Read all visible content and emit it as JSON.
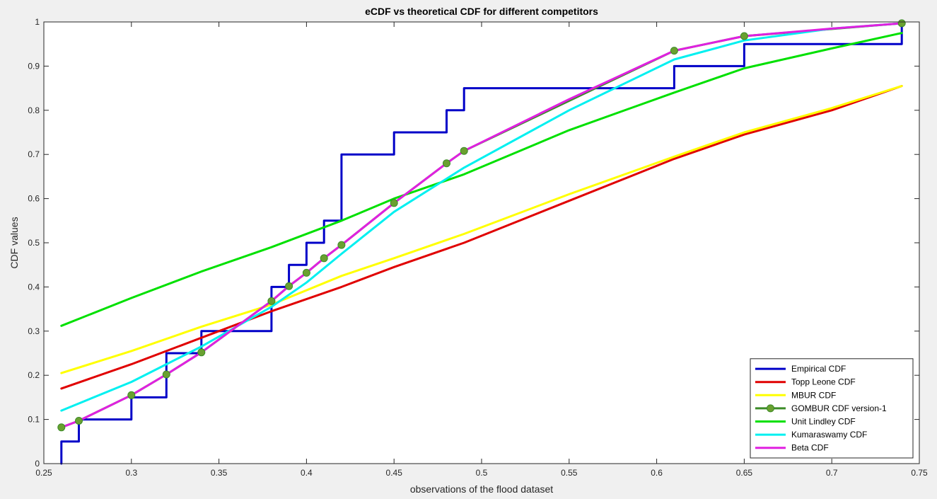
{
  "chart_data": {
    "type": "line",
    "title": "eCDF vs theoretical CDF for different competitors",
    "xlabel": "observations of the flood dataset",
    "ylabel": "CDF values",
    "xlim": [
      0.25,
      0.75
    ],
    "ylim": [
      0,
      1
    ],
    "xticks": [
      0.25,
      0.3,
      0.35,
      0.4,
      0.45,
      0.5,
      0.55,
      0.6,
      0.65,
      0.7,
      0.75
    ],
    "xtick_labels": [
      "0.25",
      "0.3",
      "0.35",
      "0.4",
      "0.45",
      "0.5",
      "0.55",
      "0.6",
      "0.65",
      "0.7",
      "0.75"
    ],
    "yticks": [
      0,
      0.1,
      0.2,
      0.3,
      0.4,
      0.5,
      0.6,
      0.7,
      0.8,
      0.9,
      1
    ],
    "ytick_labels": [
      "0",
      "0.1",
      "0.2",
      "0.3",
      "0.4",
      "0.5",
      "0.6",
      "0.7",
      "0.8",
      "0.9",
      "1"
    ],
    "grid": false,
    "legend_position": "bottom-right",
    "series": [
      {
        "name": "Empirical CDF",
        "style": "step",
        "color": "#0000c8",
        "x": [
          0.26,
          0.26,
          0.27,
          0.27,
          0.3,
          0.3,
          0.32,
          0.32,
          0.34,
          0.34,
          0.38,
          0.38,
          0.39,
          0.39,
          0.4,
          0.4,
          0.41,
          0.41,
          0.42,
          0.42,
          0.45,
          0.45,
          0.48,
          0.48,
          0.49,
          0.49,
          0.61,
          0.61,
          0.65,
          0.65,
          0.74,
          0.74
        ],
        "y": [
          0,
          0.05,
          0.05,
          0.1,
          0.1,
          0.15,
          0.15,
          0.25,
          0.25,
          0.3,
          0.3,
          0.4,
          0.4,
          0.45,
          0.45,
          0.5,
          0.5,
          0.55,
          0.55,
          0.7,
          0.7,
          0.75,
          0.75,
          0.8,
          0.8,
          0.85,
          0.85,
          0.9,
          0.9,
          0.95,
          0.95,
          1.0
        ]
      },
      {
        "name": "Topp Leone CDF",
        "style": "line",
        "color": "#e00000",
        "x": [
          0.26,
          0.3,
          0.34,
          0.38,
          0.42,
          0.45,
          0.49,
          0.55,
          0.61,
          0.65,
          0.7,
          0.74
        ],
        "y": [
          0.17,
          0.225,
          0.285,
          0.345,
          0.4,
          0.445,
          0.5,
          0.595,
          0.69,
          0.745,
          0.8,
          0.855
        ]
      },
      {
        "name": "MBUR CDF",
        "style": "line",
        "color": "#ffff00",
        "x": [
          0.26,
          0.3,
          0.34,
          0.38,
          0.42,
          0.45,
          0.49,
          0.55,
          0.61,
          0.65,
          0.7,
          0.74
        ],
        "y": [
          0.205,
          0.255,
          0.31,
          0.36,
          0.425,
          0.465,
          0.52,
          0.61,
          0.695,
          0.75,
          0.805,
          0.855
        ]
      },
      {
        "name": "GOMBUR CDF version-1",
        "style": "line-marker",
        "color": "#3c8c28",
        "marker_color": "#6aa030",
        "x": [
          0.26,
          0.27,
          0.3,
          0.32,
          0.34,
          0.38,
          0.39,
          0.4,
          0.41,
          0.42,
          0.45,
          0.48,
          0.49,
          0.61,
          0.65,
          0.74
        ],
        "y": [
          0.082,
          0.097,
          0.155,
          0.202,
          0.252,
          0.368,
          0.402,
          0.432,
          0.465,
          0.495,
          0.59,
          0.68,
          0.708,
          0.935,
          0.968,
          0.997
        ]
      },
      {
        "name": "Unit Lindley CDF",
        "style": "line",
        "color": "#00e000",
        "x": [
          0.26,
          0.3,
          0.34,
          0.38,
          0.42,
          0.45,
          0.49,
          0.55,
          0.61,
          0.65,
          0.7,
          0.74
        ],
        "y": [
          0.312,
          0.375,
          0.435,
          0.49,
          0.55,
          0.6,
          0.655,
          0.755,
          0.84,
          0.895,
          0.94,
          0.975
        ]
      },
      {
        "name": "Kumaraswamy CDF",
        "style": "line",
        "color": "#00f0f0",
        "x": [
          0.26,
          0.3,
          0.32,
          0.34,
          0.38,
          0.4,
          0.42,
          0.45,
          0.48,
          0.49,
          0.55,
          0.61,
          0.65,
          0.7,
          0.74
        ],
        "y": [
          0.12,
          0.185,
          0.225,
          0.265,
          0.355,
          0.41,
          0.475,
          0.57,
          0.645,
          0.67,
          0.8,
          0.915,
          0.958,
          0.985,
          0.997
        ]
      },
      {
        "name": "Beta CDF",
        "style": "line",
        "color": "#e020e0",
        "x": [
          0.26,
          0.27,
          0.3,
          0.32,
          0.34,
          0.38,
          0.39,
          0.4,
          0.41,
          0.42,
          0.45,
          0.48,
          0.49,
          0.55,
          0.61,
          0.65,
          0.7,
          0.74
        ],
        "y": [
          0.082,
          0.097,
          0.155,
          0.202,
          0.252,
          0.368,
          0.402,
          0.432,
          0.465,
          0.495,
          0.59,
          0.68,
          0.708,
          0.825,
          0.935,
          0.968,
          0.985,
          0.997
        ]
      }
    ]
  }
}
